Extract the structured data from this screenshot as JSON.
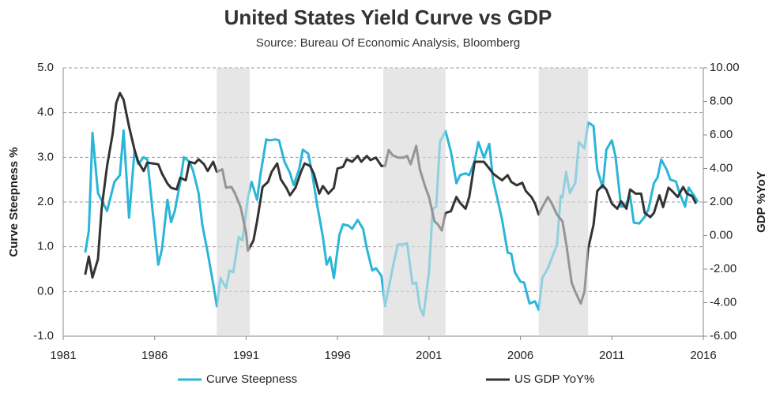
{
  "chart_data": {
    "type": "line",
    "title": "United States Yield Curve vs GDP",
    "subtitle": "Source: Bureau Of Economic Analysis,  Bloomberg",
    "y_label": "Curve Steepness %",
    "y2_label": "GDP %YoY",
    "xlim": [
      1981,
      2016
    ],
    "xticks": [
      1981,
      1986,
      1991,
      1996,
      2001,
      2006,
      2011,
      2016
    ],
    "ylim": [
      -1,
      5
    ],
    "yticks": [
      {
        "value": -1,
        "label": "-1.0"
      },
      {
        "value": 0,
        "label": "0.0"
      },
      {
        "value": 1,
        "label": "1.0"
      },
      {
        "value": 2,
        "label": "2.0"
      },
      {
        "value": 3,
        "label": "3.0"
      },
      {
        "value": 4,
        "label": "4.0"
      },
      {
        "value": 5,
        "label": "5.0"
      }
    ],
    "y2lim": [
      -6,
      10
    ],
    "y2ticks": [
      {
        "value": -6,
        "label": "-6.00"
      },
      {
        "value": -4,
        "label": "-4.00"
      },
      {
        "value": -2,
        "label": "-2.00"
      },
      {
        "value": 0,
        "label": "0.00"
      },
      {
        "value": 2,
        "label": "2.00"
      },
      {
        "value": 4,
        "label": "4.00"
      },
      {
        "value": 6,
        "label": "6.00"
      },
      {
        "value": 8,
        "label": "8.00"
      },
      {
        "value": 10,
        "label": "10.00"
      }
    ],
    "grid": true,
    "legend": "bottom",
    "shaded_periods": [
      [
        1989.4,
        1991.2
      ],
      [
        1998.5,
        2001.9
      ],
      [
        2007.0,
        2009.7
      ]
    ],
    "shade_color": "#e6e6e6",
    "series": [
      {
        "name": "Curve Steepness",
        "color": "#2bb5d8",
        "axis": "y",
        "x": [
          1982.2,
          1982.4,
          1982.6,
          1982.9,
          1983.4,
          1983.8,
          1984.1,
          1984.3,
          1984.6,
          1984.9,
          1985.1,
          1985.4,
          1985.6,
          1985.9,
          1986.2,
          1986.4,
          1986.7,
          1986.9,
          1987.1,
          1987.4,
          1987.6,
          1987.9,
          1988.1,
          1988.4,
          1988.6,
          1988.9,
          1989.2,
          1989.4,
          1989.6,
          1989.9,
          1990.1,
          1990.3,
          1990.6,
          1990.8,
          1991.1,
          1991.3,
          1991.6,
          1991.8,
          1992.1,
          1992.3,
          1992.6,
          1992.8,
          1993.1,
          1993.4,
          1993.6,
          1993.9,
          1994.1,
          1994.4,
          1994.6,
          1994.9,
          1995.2,
          1995.4,
          1995.6,
          1995.8,
          1996.1,
          1996.3,
          1996.6,
          1996.8,
          1997.1,
          1997.4,
          1997.6,
          1997.9,
          1998.1,
          1998.4,
          1998.6,
          1998.8,
          1999.1,
          1999.3,
          1999.6,
          1999.8,
          2000.1,
          2000.3,
          2000.5,
          2000.7,
          2001.0,
          2001.2,
          2001.4,
          2001.6,
          2001.9,
          2002.2,
          2002.5,
          2002.7,
          2003.0,
          2003.2,
          2003.5,
          2003.7,
          2004.0,
          2004.3,
          2004.5,
          2004.8,
          2005.0,
          2005.3,
          2005.5,
          2005.7,
          2006.0,
          2006.2,
          2006.5,
          2006.8,
          2007.0,
          2007.2,
          2007.5,
          2007.7,
          2008.0,
          2008.2,
          2008.3,
          2008.5,
          2008.7,
          2009.0,
          2009.2,
          2009.5,
          2009.7,
          2010.0,
          2010.2,
          2010.5,
          2010.7,
          2011.0,
          2011.2,
          2011.5,
          2011.7,
          2012.0,
          2012.2,
          2012.5,
          2012.8,
          2013.0,
          2013.3,
          2013.5,
          2013.7,
          2014.0,
          2014.2,
          2014.5,
          2014.7,
          2015.0,
          2015.2,
          2015.5,
          2015.7
        ],
        "values": [
          0.87,
          1.35,
          3.55,
          2.2,
          1.8,
          2.45,
          2.6,
          3.6,
          1.65,
          3.15,
          2.85,
          3.0,
          2.95,
          1.75,
          0.6,
          0.95,
          2.05,
          1.55,
          1.8,
          2.45,
          3.0,
          2.9,
          2.7,
          2.2,
          1.5,
          0.87,
          0.17,
          -0.33,
          0.3,
          0.08,
          0.47,
          0.43,
          1.22,
          1.14,
          2.1,
          2.45,
          2.05,
          2.65,
          3.4,
          3.38,
          3.4,
          3.38,
          2.9,
          2.65,
          2.38,
          2.73,
          3.17,
          3.08,
          2.67,
          1.9,
          1.22,
          0.6,
          0.77,
          0.3,
          1.26,
          1.5,
          1.47,
          1.4,
          1.6,
          1.4,
          0.96,
          0.47,
          0.52,
          0.35,
          -0.33,
          0.08,
          0.7,
          1.05,
          1.05,
          1.08,
          0.17,
          0.2,
          -0.36,
          -0.54,
          0.43,
          1.84,
          1.9,
          3.34,
          3.59,
          3.13,
          2.42,
          2.6,
          2.64,
          2.6,
          2.92,
          3.34,
          2.99,
          3.3,
          2.5,
          1.97,
          1.6,
          0.87,
          0.84,
          0.43,
          0.22,
          0.2,
          -0.27,
          -0.22,
          -0.41,
          0.3,
          0.52,
          0.73,
          1.05,
          2.14,
          2.1,
          2.67,
          2.2,
          2.43,
          3.34,
          3.2,
          3.78,
          3.7,
          2.73,
          2.32,
          3.17,
          3.38,
          3.02,
          1.9,
          1.9,
          2.14,
          1.54,
          1.52,
          1.67,
          1.84,
          2.42,
          2.55,
          2.95,
          2.72,
          2.5,
          2.46,
          2.2,
          1.9,
          2.32,
          2.14,
          2.0
        ]
      },
      {
        "name": "US GDP YoY%",
        "color": "#333333",
        "axis": "y2",
        "x": [
          1982.2,
          1982.4,
          1982.6,
          1982.9,
          1983.1,
          1983.4,
          1983.7,
          1983.9,
          1984.1,
          1984.3,
          1984.6,
          1984.9,
          1985.1,
          1985.4,
          1985.6,
          1985.9,
          1986.2,
          1986.4,
          1986.7,
          1986.9,
          1987.2,
          1987.4,
          1987.7,
          1987.9,
          1988.2,
          1988.4,
          1988.7,
          1988.9,
          1989.2,
          1989.4,
          1989.7,
          1989.9,
          1990.2,
          1990.4,
          1990.7,
          1991.0,
          1991.1,
          1991.4,
          1991.6,
          1991.9,
          1992.2,
          1992.4,
          1992.7,
          1992.9,
          1993.2,
          1993.4,
          1993.7,
          1994.0,
          1994.2,
          1994.5,
          1994.7,
          1995.0,
          1995.2,
          1995.5,
          1995.8,
          1996.0,
          1996.3,
          1996.5,
          1996.8,
          1997.1,
          1997.3,
          1997.6,
          1997.8,
          1998.1,
          1998.4,
          1998.6,
          1998.8,
          1999.0,
          1999.3,
          1999.6,
          1999.8,
          2000.0,
          2000.3,
          2000.5,
          2000.8,
          2001.0,
          2001.3,
          2001.5,
          2001.7,
          2001.9,
          2002.2,
          2002.5,
          2002.7,
          2003.0,
          2003.2,
          2003.5,
          2003.7,
          2004.0,
          2004.3,
          2004.5,
          2004.8,
          2005.0,
          2005.3,
          2005.5,
          2005.8,
          2006.1,
          2006.3,
          2006.6,
          2006.8,
          2007.0,
          2007.2,
          2007.5,
          2007.7,
          2008.0,
          2008.3,
          2008.5,
          2008.8,
          2009.0,
          2009.3,
          2009.5,
          2009.7,
          2010.0,
          2010.2,
          2010.5,
          2010.7,
          2011.0,
          2011.3,
          2011.5,
          2011.8,
          2012.0,
          2012.3,
          2012.6,
          2012.8,
          2013.1,
          2013.3,
          2013.6,
          2013.8,
          2014.1,
          2014.3,
          2014.6,
          2014.9,
          2015.1,
          2015.4,
          2015.6
        ],
        "values": [
          -2.33,
          -1.25,
          -2.5,
          -1.4,
          1.6,
          4.15,
          6.05,
          7.9,
          8.5,
          8.1,
          6.5,
          5.1,
          4.4,
          3.85,
          4.35,
          4.3,
          4.25,
          3.7,
          3.1,
          2.85,
          2.75,
          3.45,
          3.3,
          4.4,
          4.3,
          4.55,
          4.25,
          3.85,
          4.4,
          3.8,
          3.95,
          2.85,
          2.9,
          2.5,
          1.7,
          0.15,
          -0.9,
          -0.3,
          0.85,
          2.9,
          3.2,
          3.8,
          4.3,
          3.35,
          2.85,
          2.4,
          2.85,
          3.8,
          4.3,
          4.15,
          3.7,
          2.5,
          2.95,
          2.5,
          2.85,
          4.0,
          4.1,
          4.55,
          4.4,
          4.75,
          4.4,
          4.75,
          4.5,
          4.65,
          4.15,
          4.15,
          5.1,
          4.8,
          4.65,
          4.65,
          4.75,
          4.25,
          5.35,
          3.95,
          2.9,
          2.3,
          0.85,
          0.65,
          0.3,
          1.35,
          1.45,
          2.3,
          1.95,
          1.6,
          2.3,
          4.4,
          4.4,
          4.4,
          4.0,
          3.7,
          3.45,
          3.3,
          3.6,
          3.2,
          3.0,
          3.15,
          2.65,
          2.3,
          1.9,
          1.25,
          1.7,
          2.3,
          1.95,
          1.25,
          0.85,
          -0.45,
          -2.8,
          -3.35,
          -4.05,
          -3.35,
          -0.8,
          0.65,
          2.65,
          3.0,
          2.75,
          1.9,
          1.6,
          2.05,
          1.6,
          2.75,
          2.5,
          2.5,
          1.35,
          1.1,
          1.35,
          2.4,
          1.7,
          2.85,
          2.65,
          2.3,
          2.9,
          2.5,
          2.35,
          1.9
        ]
      }
    ]
  }
}
